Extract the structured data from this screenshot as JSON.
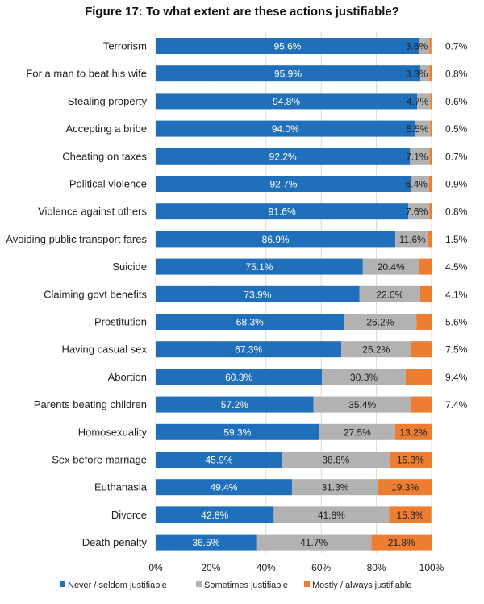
{
  "chart_data": {
    "type": "bar",
    "stacked": true,
    "orientation": "horizontal",
    "title": "Figure 17: To what extent are these actions justifiable?",
    "categories": [
      "Terrorism",
      "For a man to beat his wife",
      "Stealing property",
      "Accepting a bribe",
      "Cheating on taxes",
      "Political violence",
      "Violence against others",
      "Avoiding public transport fares",
      "Suicide",
      "Claiming govt benefits",
      "Prostitution",
      "Having casual sex",
      "Abortion",
      "Parents beating children",
      "Homosexuality",
      "Sex before marriage",
      "Euthanasia",
      "Divorce",
      "Death penalty"
    ],
    "series": [
      {
        "name": "Never / seldom justifiable",
        "color": "#1f6fba",
        "values": [
          95.6,
          95.9,
          94.8,
          94.0,
          92.2,
          92.7,
          91.6,
          86.9,
          75.1,
          73.9,
          68.3,
          67.3,
          60.3,
          57.2,
          59.3,
          45.9,
          49.4,
          42.8,
          36.5
        ]
      },
      {
        "name": "Sometimes justifiable",
        "color": "#b2b2b2",
        "values": [
          3.6,
          3.3,
          4.7,
          5.5,
          7.1,
          6.4,
          7.6,
          11.6,
          20.4,
          22.0,
          26.2,
          25.2,
          30.3,
          35.4,
          27.5,
          38.8,
          31.3,
          41.8,
          41.7
        ]
      },
      {
        "name": "Mostly / always justifiable",
        "color": "#ed7d31",
        "values": [
          0.7,
          0.8,
          0.6,
          0.5,
          0.7,
          0.9,
          0.8,
          1.5,
          4.5,
          4.1,
          5.6,
          7.5,
          9.4,
          7.4,
          13.2,
          15.3,
          19.3,
          15.3,
          21.8
        ]
      }
    ],
    "labels": [
      [
        "95.6%",
        "3.6%",
        "0.7%"
      ],
      [
        "95.9%",
        "3.3%",
        "0.8%"
      ],
      [
        "94.8%",
        "4.7%",
        "0.6%"
      ],
      [
        "94.0%",
        "5.5%",
        "0.5%"
      ],
      [
        "92.2%",
        "7.1%",
        "0.7%"
      ],
      [
        "92.7%",
        "6.4%",
        "0.9%"
      ],
      [
        "91.6%",
        "7.6%",
        "0.8%"
      ],
      [
        "86.9%",
        "11.6%",
        "1.5%"
      ],
      [
        "75.1%",
        "20.4%",
        "4.5%"
      ],
      [
        "73.9%",
        "22.0%",
        "4.1%"
      ],
      [
        "68.3%",
        "26.2%",
        "5.6%"
      ],
      [
        "67.3%",
        "25.2%",
        "7.5%"
      ],
      [
        "60.3%",
        "30.3%",
        "9.4%"
      ],
      [
        "57.2%",
        "35.4%",
        "7.4%"
      ],
      [
        "59.3%",
        "27.5%",
        "13.2%"
      ],
      [
        "45.9%",
        "38.8%",
        "15.3%"
      ],
      [
        "49.4%",
        "31.3%",
        "19.3%"
      ],
      [
        "42.8%",
        "41.8%",
        "15.3%"
      ],
      [
        "36.5%",
        "41.7%",
        "21.8%"
      ]
    ],
    "third_label_outside": [
      true,
      true,
      true,
      true,
      true,
      true,
      true,
      true,
      true,
      true,
      true,
      true,
      true,
      true,
      false,
      false,
      false,
      false,
      false
    ],
    "xlim": [
      0,
      100
    ],
    "xticks": [
      "0%",
      "20%",
      "40%",
      "60%",
      "80%",
      "100%"
    ],
    "grid": true,
    "legend_position": "bottom"
  }
}
